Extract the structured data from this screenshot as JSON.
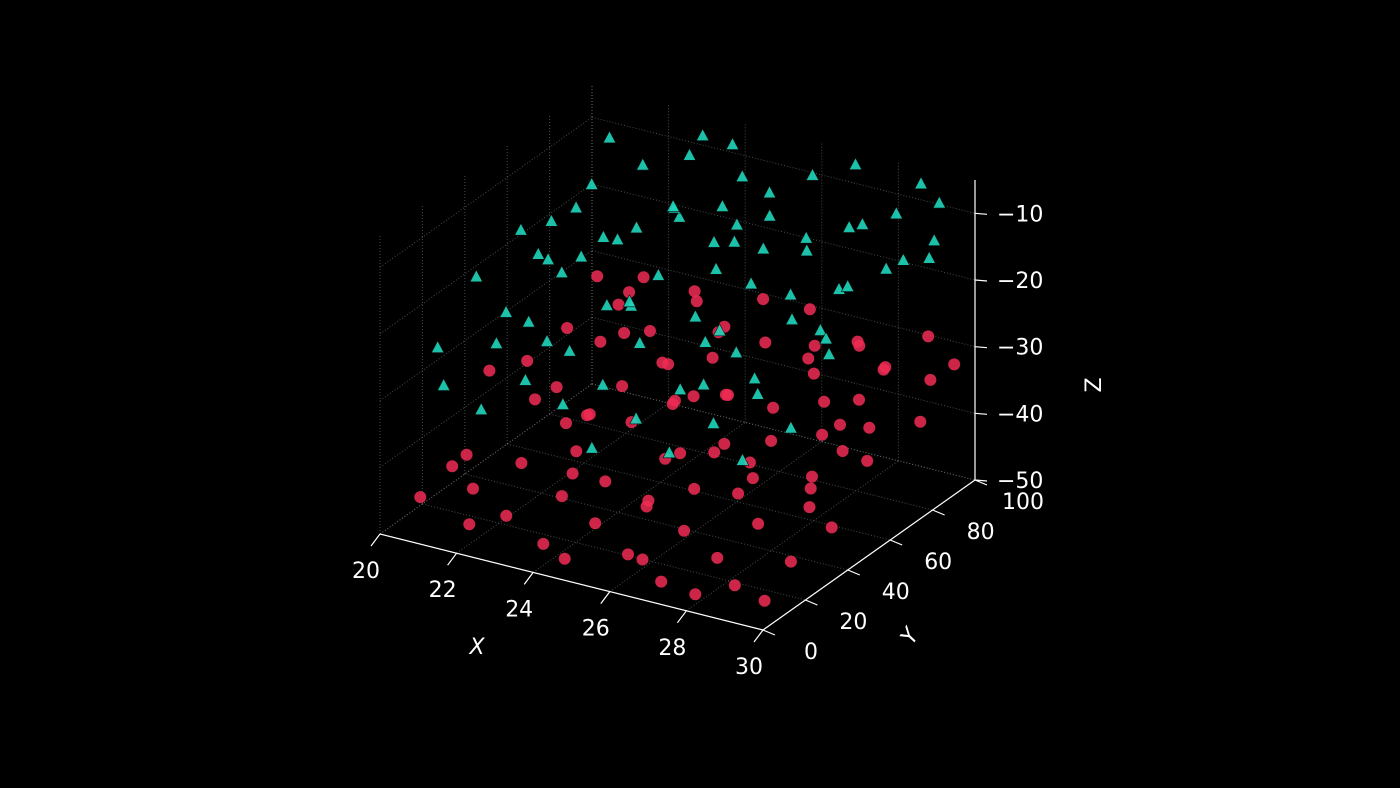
{
  "chart_data": {
    "type": "scatter",
    "projection": "3d",
    "title": "",
    "xlabel": "X",
    "ylabel": "Y",
    "zlabel": "Z",
    "xlim": [
      20,
      30
    ],
    "ylim": [
      0,
      100
    ],
    "zlim": [
      -50,
      -5
    ],
    "xticks": [
      "20",
      "22",
      "24",
      "26",
      "28",
      "30"
    ],
    "yticks": [
      "0",
      "20",
      "40",
      "60",
      "80",
      "100"
    ],
    "zticks": [
      "−50",
      "−40",
      "−30",
      "−20",
      "−10"
    ],
    "grid": true,
    "background": "#000000",
    "series": [
      {
        "marker": "circle",
        "color": "#f02b55",
        "points": [
          [
            20.3,
            64,
            -38
          ],
          [
            20.9,
            72,
            -34
          ],
          [
            21.4,
            58,
            -39
          ],
          [
            21.8,
            80,
            -31
          ],
          [
            22.1,
            66,
            -33
          ],
          [
            22.6,
            52,
            -40
          ],
          [
            20.6,
            30,
            -44
          ],
          [
            21.1,
            24,
            -47
          ],
          [
            21.7,
            36,
            -45
          ],
          [
            22.3,
            18,
            -48
          ],
          [
            22.8,
            42,
            -43
          ],
          [
            23.2,
            28,
            -46
          ],
          [
            23.6,
            12,
            -49
          ],
          [
            24.0,
            34,
            -44
          ],
          [
            24.4,
            22,
            -47
          ],
          [
            24.9,
            46,
            -42
          ],
          [
            25.3,
            30,
            -45
          ],
          [
            25.7,
            14,
            -48
          ],
          [
            26.1,
            38,
            -43
          ],
          [
            26.5,
            26,
            -46
          ],
          [
            26.9,
            8,
            -49
          ],
          [
            27.3,
            44,
            -41
          ],
          [
            27.7,
            20,
            -47
          ],
          [
            28.1,
            32,
            -44
          ],
          [
            28.6,
            12,
            -48
          ],
          [
            29.0,
            40,
            -42
          ],
          [
            29.4,
            24,
            -46
          ],
          [
            29.8,
            36,
            -43
          ],
          [
            20.8,
            88,
            -30
          ],
          [
            21.3,
            94,
            -33
          ],
          [
            21.9,
            90,
            -29
          ],
          [
            22.4,
            84,
            -35
          ],
          [
            22.9,
            96,
            -31
          ],
          [
            23.4,
            88,
            -30
          ],
          [
            23.9,
            92,
            -34
          ],
          [
            24.3,
            82,
            -32
          ],
          [
            24.8,
            94,
            -29
          ],
          [
            25.3,
            86,
            -33
          ],
          [
            25.8,
            98,
            -30
          ],
          [
            26.2,
            90,
            -35
          ],
          [
            26.7,
            84,
            -31
          ],
          [
            27.2,
            96,
            -33
          ],
          [
            27.6,
            88,
            -30
          ],
          [
            28.1,
            92,
            -34
          ],
          [
            28.5,
            84,
            -32
          ],
          [
            29.0,
            96,
            -29
          ],
          [
            29.5,
            88,
            -33
          ],
          [
            29.9,
            92,
            -31
          ],
          [
            23.0,
            60,
            -37
          ],
          [
            23.5,
            70,
            -35
          ],
          [
            24.1,
            64,
            -39
          ],
          [
            24.6,
            56,
            -36
          ],
          [
            25.1,
            72,
            -38
          ],
          [
            25.6,
            62,
            -35
          ],
          [
            26.0,
            54,
            -40
          ],
          [
            26.5,
            68,
            -37
          ],
          [
            27.0,
            58,
            -39
          ],
          [
            27.5,
            74,
            -36
          ],
          [
            28.0,
            64,
            -38
          ],
          [
            28.4,
            52,
            -41
          ],
          [
            28.9,
            70,
            -37
          ],
          [
            29.4,
            60,
            -39
          ],
          [
            29.9,
            76,
            -36
          ],
          [
            22.2,
            48,
            -41
          ],
          [
            23.8,
            50,
            -39
          ],
          [
            25.4,
            44,
            -40
          ],
          [
            27.0,
            48,
            -40
          ],
          [
            28.7,
            46,
            -41
          ],
          [
            20.5,
            10,
            -46
          ],
          [
            22.0,
            6,
            -47
          ],
          [
            24.6,
            4,
            -48
          ],
          [
            26.3,
            10,
            -47
          ],
          [
            27.9,
            6,
            -49
          ],
          [
            29.6,
            8,
            -48
          ],
          [
            21.5,
            46,
            -38
          ],
          [
            24.7,
            72,
            -33
          ],
          [
            26.9,
            80,
            -34
          ],
          [
            28.3,
            76,
            -35
          ],
          [
            23.3,
            38,
            -36
          ],
          [
            27.8,
            28,
            -39
          ],
          [
            29.2,
            52,
            -36
          ],
          [
            20.2,
            48,
            -36
          ],
          [
            25.9,
            20,
            -41
          ],
          [
            24.2,
            60,
            -32
          ],
          [
            22.5,
            70,
            -32
          ],
          [
            26.4,
            42,
            -38
          ],
          [
            28.8,
            58,
            -34
          ],
          [
            21.0,
            16,
            -42
          ],
          [
            23.7,
            24,
            -41
          ],
          [
            25.2,
            54,
            -34
          ]
        ]
      },
      {
        "marker": "triangle",
        "color": "#1fd6bd",
        "points": [
          [
            20.3,
            40,
            -20
          ],
          [
            20.8,
            52,
            -15
          ],
          [
            21.3,
            36,
            -23
          ],
          [
            21.8,
            60,
            -12
          ],
          [
            22.2,
            46,
            -18
          ],
          [
            22.7,
            30,
            -24
          ],
          [
            23.1,
            56,
            -14
          ],
          [
            23.6,
            42,
            -20
          ],
          [
            24.0,
            66,
            -10
          ],
          [
            24.5,
            50,
            -16
          ],
          [
            24.9,
            34,
            -22
          ],
          [
            25.4,
            60,
            -12
          ],
          [
            25.8,
            44,
            -19
          ],
          [
            26.3,
            70,
            -9
          ],
          [
            26.7,
            54,
            -15
          ],
          [
            27.2,
            38,
            -21
          ],
          [
            27.6,
            64,
            -11
          ],
          [
            28.1,
            48,
            -17
          ],
          [
            28.5,
            74,
            -8
          ],
          [
            29.0,
            58,
            -13
          ],
          [
            29.4,
            42,
            -19
          ],
          [
            29.9,
            68,
            -10
          ],
          [
            20.6,
            70,
            -18
          ],
          [
            21.1,
            80,
            -14
          ],
          [
            21.6,
            66,
            -21
          ],
          [
            22.1,
            86,
            -11
          ],
          [
            22.6,
            74,
            -17
          ],
          [
            23.1,
            90,
            -9
          ],
          [
            23.5,
            78,
            -15
          ],
          [
            24.0,
            94,
            -7
          ],
          [
            24.4,
            82,
            -13
          ],
          [
            24.9,
            70,
            -19
          ],
          [
            25.3,
            88,
            -11
          ],
          [
            25.8,
            76,
            -16
          ],
          [
            26.2,
            92,
            -8
          ],
          [
            26.7,
            80,
            -14
          ],
          [
            27.1,
            96,
            -6
          ],
          [
            27.6,
            84,
            -12
          ],
          [
            28.0,
            72,
            -18
          ],
          [
            28.5,
            90,
            -10
          ],
          [
            28.9,
            78,
            -15
          ],
          [
            29.4,
            94,
            -8
          ],
          [
            29.8,
            82,
            -13
          ],
          [
            20.4,
            20,
            -26
          ],
          [
            21.0,
            12,
            -29
          ],
          [
            21.6,
            26,
            -25
          ],
          [
            22.2,
            8,
            -30
          ],
          [
            22.8,
            18,
            -27
          ],
          [
            23.4,
            28,
            -24
          ],
          [
            24.0,
            14,
            -28
          ],
          [
            24.6,
            22,
            -26
          ],
          [
            25.2,
            6,
            -31
          ],
          [
            25.8,
            16,
            -28
          ],
          [
            26.4,
            26,
            -25
          ],
          [
            27.0,
            10,
            -30
          ],
          [
            27.6,
            20,
            -27
          ],
          [
            28.2,
            30,
            -24
          ],
          [
            28.8,
            12,
            -29
          ],
          [
            29.4,
            24,
            -26
          ],
          [
            21.4,
            54,
            -19
          ],
          [
            23.9,
            48,
            -21
          ],
          [
            26.1,
            50,
            -22
          ],
          [
            28.4,
            56,
            -20
          ],
          [
            22.4,
            62,
            -16
          ],
          [
            25.0,
            78,
            -14
          ],
          [
            27.4,
            60,
            -17
          ],
          [
            29.6,
            88,
            -12
          ],
          [
            20.9,
            92,
            -10
          ],
          [
            23.7,
            72,
            -12
          ],
          [
            26.5,
            36,
            -20
          ],
          [
            24.3,
            40,
            -18
          ],
          [
            27.9,
            34,
            -23
          ],
          [
            29.1,
            46,
            -18
          ],
          [
            22.0,
            34,
            -23
          ],
          [
            25.6,
            66,
            -13
          ],
          [
            20.7,
            62,
            -21
          ],
          [
            23.0,
            98,
            -8
          ],
          [
            28.7,
            98,
            -7
          ],
          [
            26.9,
            28,
            -24
          ],
          [
            24.7,
            86,
            -9
          ]
        ]
      }
    ]
  }
}
